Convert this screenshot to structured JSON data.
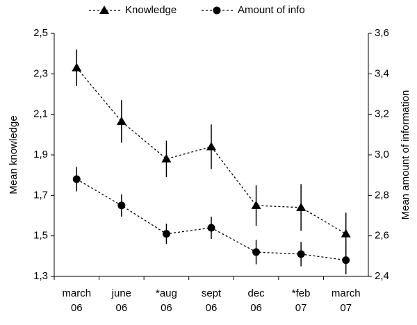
{
  "chart_data": {
    "type": "line",
    "y_label": "Mean knowledge",
    "y2_label": "Mean amount of information",
    "categories": [
      "march\n06",
      "june\n06",
      "*aug\n06",
      "sept\n06",
      "dec\n06",
      "*feb\n07",
      "march\n07"
    ],
    "ylim": [
      1.3,
      2.5
    ],
    "yticks": [
      {
        "value": 1.3,
        "label": "1,3"
      },
      {
        "value": 1.5,
        "label": "1,5"
      },
      {
        "value": 1.7,
        "label": "1,7"
      },
      {
        "value": 1.9,
        "label": "1,9"
      },
      {
        "value": 2.1,
        "label": "2,1"
      },
      {
        "value": 2.3,
        "label": "2,3"
      },
      {
        "value": 2.5,
        "label": "2,5"
      }
    ],
    "y2lim": [
      2.4,
      3.6
    ],
    "y2ticks": [
      {
        "value": 2.4,
        "label": "2,4"
      },
      {
        "value": 2.6,
        "label": "2,6"
      },
      {
        "value": 2.8,
        "label": "2,8"
      },
      {
        "value": 3.0,
        "label": "3,0"
      },
      {
        "value": 3.2,
        "label": "3,2"
      },
      {
        "value": 3.4,
        "label": "3,4"
      },
      {
        "value": 3.6,
        "label": "3,6"
      }
    ],
    "legend": "top",
    "series": [
      {
        "name": "Knowledge",
        "color": "#000000",
        "marker": "triangle",
        "values": [
          2.33,
          2.065,
          1.88,
          1.94,
          1.65,
          1.64,
          1.51
        ],
        "errors": [
          0.09,
          0.105,
          0.09,
          0.11,
          0.1,
          0.115,
          0.105
        ]
      },
      {
        "name": "Amount of info",
        "color": "#000000",
        "marker": "circle",
        "axis": "y2",
        "values": [
          2.88,
          2.75,
          2.61,
          2.64,
          2.52,
          2.51,
          2.48
        ],
        "errors": [
          0.06,
          0.055,
          0.05,
          0.055,
          0.06,
          0.06,
          0.07
        ]
      }
    ]
  }
}
